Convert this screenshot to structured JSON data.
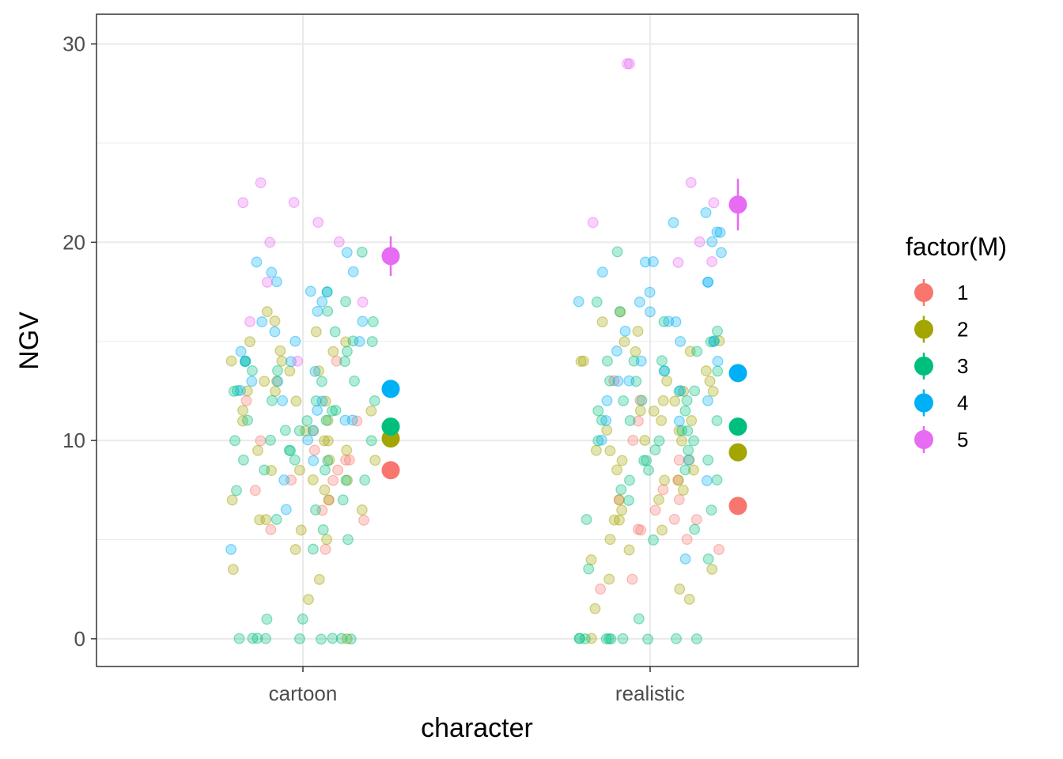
{
  "chart_data": {
    "type": "scatter",
    "title": "",
    "xlabel": "character",
    "ylabel": "NGV",
    "categories": [
      "cartoon",
      "realistic"
    ],
    "y_ticks": [
      "0",
      "10",
      "20",
      "30"
    ],
    "ylim": [
      -1.4,
      31.5
    ],
    "grid": true,
    "legend": {
      "title": "factor(M)",
      "position": "right",
      "entries": [
        "1",
        "2",
        "3",
        "4",
        "5"
      ],
      "colors": [
        "#F8766D",
        "#A3A500",
        "#00BF7D",
        "#00B0F6",
        "#E76BF3"
      ]
    },
    "series": [
      {
        "name": "1",
        "color": "#F8766D",
        "mean": [
          {
            "x": "cartoon",
            "y": 8.5,
            "lo": 8.2,
            "hi": 8.8
          },
          {
            "x": "realistic",
            "y": 6.7,
            "lo": 6.4,
            "hi": 7.0
          }
        ],
        "points": {
          "cartoon": [
            4.5,
            6.5,
            7.0,
            7.5,
            8.0,
            8.5,
            9.0,
            9.5,
            10.0,
            11.0,
            12.0,
            14.0,
            5.5,
            6.0,
            8.0,
            9.0
          ],
          "realistic": [
            2.5,
            3.0,
            4.5,
            5.0,
            5.5,
            6.0,
            6.5,
            7.0,
            7.5,
            8.0,
            9.0,
            10.0,
            11.0,
            12.0,
            13.0,
            6.0,
            7.0,
            5.5
          ]
        }
      },
      {
        "name": "2",
        "color": "#A3A500",
        "mean": [
          {
            "x": "cartoon",
            "y": 10.1,
            "lo": 9.95,
            "hi": 10.25
          },
          {
            "x": "realistic",
            "y": 9.4,
            "lo": 9.25,
            "hi": 9.55
          }
        ],
        "points": {
          "cartoon": [
            0,
            2,
            3,
            3.5,
            4.5,
            5,
            5.5,
            6,
            6.5,
            7,
            7.5,
            8,
            8.5,
            9,
            9.5,
            10,
            10.5,
            11,
            11.5,
            12,
            12.5,
            13,
            13.5,
            14,
            14.5,
            15,
            15.5,
            16,
            16.5,
            10,
            11,
            12,
            9,
            8,
            7,
            13,
            14,
            6,
            12.5,
            11.5,
            10.5,
            9.5,
            8.5,
            15,
            14.5,
            13.5
          ],
          "realistic": [
            0,
            1.5,
            2,
            2.5,
            3,
            3.5,
            4,
            4.5,
            5,
            5.5,
            6,
            6.5,
            7,
            7.5,
            8,
            8.5,
            9,
            9.5,
            10,
            10.5,
            11,
            11.5,
            12,
            12.5,
            13,
            13.5,
            14,
            14.5,
            15,
            15.5,
            16,
            16.5,
            10,
            11,
            12,
            9,
            8,
            7,
            13,
            14,
            6,
            12.5,
            11.5,
            10.5,
            9.5,
            8.5,
            15,
            14.5
          ]
        }
      },
      {
        "name": "3",
        "color": "#00BF7D",
        "mean": [
          {
            "x": "cartoon",
            "y": 10.7,
            "lo": 10.55,
            "hi": 10.85
          },
          {
            "x": "realistic",
            "y": 10.7,
            "lo": 10.55,
            "hi": 10.85
          }
        ],
        "points": {
          "cartoon": [
            0,
            0,
            0,
            0,
            0,
            0,
            0,
            0,
            0,
            1,
            1,
            4.5,
            5,
            5.5,
            6,
            6.5,
            7,
            7.5,
            8,
            8.5,
            9,
            9.5,
            10,
            10.5,
            11,
            11.5,
            12,
            12.5,
            13,
            13.5,
            14,
            14.5,
            15,
            15.5,
            16,
            16.5,
            17,
            17.5,
            19.5,
            10,
            11,
            12,
            9,
            8,
            13,
            14,
            10.5,
            11.5,
            12.5,
            9.5,
            8.5,
            13.5,
            12,
            11,
            10,
            9,
            14,
            15
          ],
          "realistic": [
            0,
            0,
            0,
            0,
            0,
            0,
            0,
            0,
            0,
            0,
            1,
            3.5,
            4,
            5,
            5.5,
            6,
            6.5,
            7,
            7.5,
            8,
            8.5,
            9,
            9.5,
            10,
            10.5,
            11,
            11.5,
            12,
            12.5,
            13,
            13.5,
            14,
            14.5,
            15,
            15.5,
            16,
            16.5,
            17,
            19.5,
            10,
            11,
            12,
            9,
            8,
            13,
            14,
            10.5,
            11.5,
            12.5,
            9.5,
            8.5,
            13.5,
            12,
            11,
            10,
            9,
            14,
            15
          ]
        }
      },
      {
        "name": "4",
        "color": "#00B0F6",
        "mean": [
          {
            "x": "cartoon",
            "y": 12.6,
            "lo": 12.35,
            "hi": 12.85
          },
          {
            "x": "realistic",
            "y": 13.4,
            "lo": 13.15,
            "hi": 13.65
          }
        ],
        "points": {
          "cartoon": [
            4.5,
            6.5,
            8,
            9,
            10,
            11,
            11.5,
            12,
            12.5,
            13,
            13.5,
            14,
            14.5,
            15,
            15.5,
            16,
            16.5,
            17,
            17.5,
            18,
            18.5,
            19,
            19.5,
            12,
            13,
            14,
            11,
            10.5,
            15,
            16,
            18.5,
            17.5
          ],
          "realistic": [
            4,
            8,
            9,
            10,
            11,
            12,
            12.5,
            13,
            13.5,
            14,
            14.5,
            15,
            15.5,
            16,
            16.5,
            17,
            17.5,
            18,
            18.5,
            19,
            19.5,
            20,
            20.5,
            21,
            21.5,
            13,
            14,
            15,
            12,
            11,
            16,
            17,
            18,
            19,
            20.5
          ]
        }
      },
      {
        "name": "5",
        "color": "#E76BF3",
        "mean": [
          {
            "x": "cartoon",
            "y": 19.3,
            "lo": 18.3,
            "hi": 20.3
          },
          {
            "x": "realistic",
            "y": 21.9,
            "lo": 20.6,
            "hi": 23.2
          }
        ],
        "points": {
          "cartoon": [
            14,
            16,
            17,
            18,
            20,
            20,
            21,
            22,
            22,
            23
          ],
          "realistic": [
            19,
            19,
            21,
            22,
            23,
            29,
            29,
            20
          ]
        }
      }
    ]
  }
}
